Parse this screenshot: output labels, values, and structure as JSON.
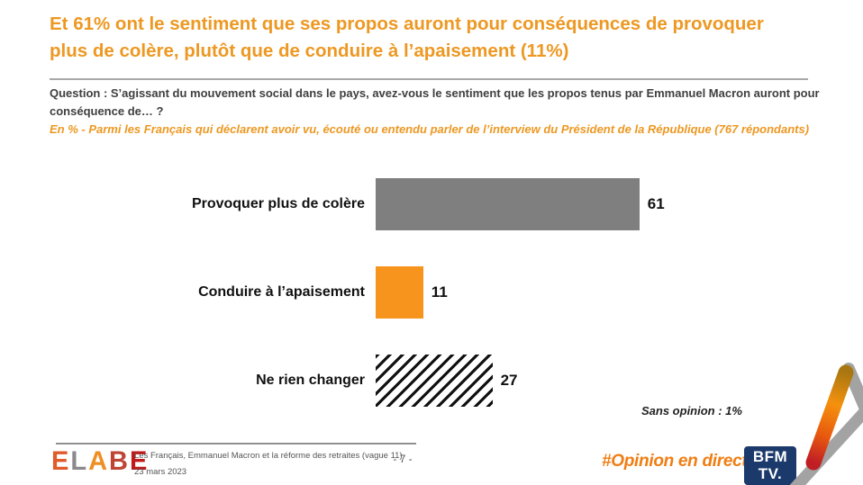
{
  "header": {
    "title_line1": "Et 61% ont le sentiment que ses propos auront pour conséquences de provoquer",
    "title_line2": "plus de colère, plutôt que de conduire à l’apaisement (11%)",
    "question": "Question : S’agissant du mouvement social dans le pays, avez-vous le sentiment que les propos tenus par Emmanuel Macron auront pour conséquence de… ?",
    "subtitle": "En % - Parmi les Français qui déclarent avoir vu, écouté ou entendu parler de l’interview du Président de la République (767 répondants)"
  },
  "chart_data": {
    "type": "bar",
    "orientation": "horizontal",
    "categories": [
      "Provoquer plus de colère",
      "Conduire à l’apaisement",
      "Ne rien changer"
    ],
    "values": [
      61,
      11,
      27
    ],
    "bar_styles": [
      "gray",
      "orange",
      "hatch"
    ],
    "xlim": [
      0,
      100
    ],
    "unit": "%",
    "note": "Sans opinion : 1%",
    "colors": {
      "gray": "#7F7F7F",
      "orange": "#F7941E",
      "hatch_foreground": "#111111",
      "hatch_background": "#FFFFFF"
    }
  },
  "footer": {
    "logo_letters": [
      {
        "char": "E",
        "color": "#E05A2B"
      },
      {
        "char": "L",
        "color": "#8A8A8E"
      },
      {
        "char": "A",
        "color": "#EE8F25"
      },
      {
        "char": "B",
        "color": "#BE4434"
      },
      {
        "char": "E",
        "color": "#C11A1A"
      }
    ],
    "source_line1": "Les Français, Emmanuel Macron et la réforme des retraites (vague 11)",
    "source_line2": "23 mars 2023",
    "page_number": "- 7 -",
    "hashtag": "#Opinion en direct",
    "bfmtv_line1": "BFM",
    "bfmtv_line2": "TV."
  },
  "colors": {
    "title_orange": "#ED9822",
    "question_gray": "#3F3F3F",
    "hashtag_orange": "#F07D12",
    "bfmtv_navy": "#1B3A6B",
    "separator_gray": "#A8A8A8",
    "a_mark_gray": "#A3A3A3",
    "a_mark_orange": "#F5910D",
    "a_mark_red": "#C01E25"
  }
}
